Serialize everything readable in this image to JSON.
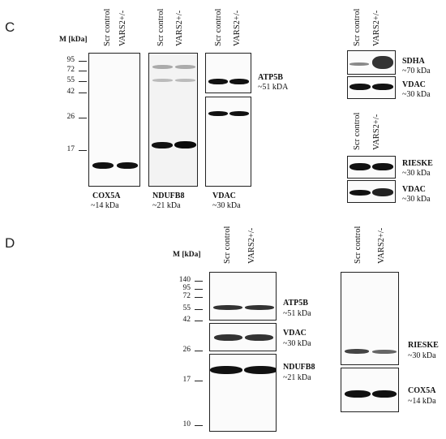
{
  "panel_c": {
    "letter": "C",
    "mw_header": "M [kDa]",
    "lanes": [
      "Scr control",
      "VARS2+/-"
    ],
    "markers": [
      "95",
      "72",
      "55",
      "42",
      "26",
      "17"
    ],
    "proteins": {
      "atp5b": {
        "name": "ATP5B",
        "size": "~51 kDA"
      },
      "cox5a": {
        "name": "COX5A",
        "size": "~14 kDa"
      },
      "ndufb8": {
        "name": "NDUFB8",
        "size": "~21 kDa"
      },
      "vdac_bottom": {
        "name": "VDAC",
        "size": "~30 kDa"
      },
      "sdha": {
        "name": "SDHA",
        "size": "~70 kDa"
      },
      "vdac_sdha": {
        "name": "VDAC",
        "size": "~30 kDa"
      },
      "rieske": {
        "name": "RIESKE",
        "size": "~30 kDa"
      },
      "vdac_rieske": {
        "name": "VDAC",
        "size": "~30 kDa"
      }
    }
  },
  "panel_d": {
    "letter": "D",
    "mw_header": "M [kDa]",
    "lanes": [
      "Scr control",
      "VARS2+/-"
    ],
    "markers": [
      "140",
      "95",
      "72",
      "55",
      "42",
      "26",
      "17",
      "10"
    ],
    "proteins": {
      "atp5b": {
        "name": "ATP5B",
        "size": "~51 kDa"
      },
      "vdac": {
        "name": "VDAC",
        "size": "~30 kDa"
      },
      "ndufb8": {
        "name": "NDUFB8",
        "size": "~21 kDa"
      },
      "rieske": {
        "name": "RIESKE",
        "size": "~30 kDa"
      },
      "cox5a": {
        "name": "COX5A",
        "size": "~14 kDa"
      }
    }
  }
}
